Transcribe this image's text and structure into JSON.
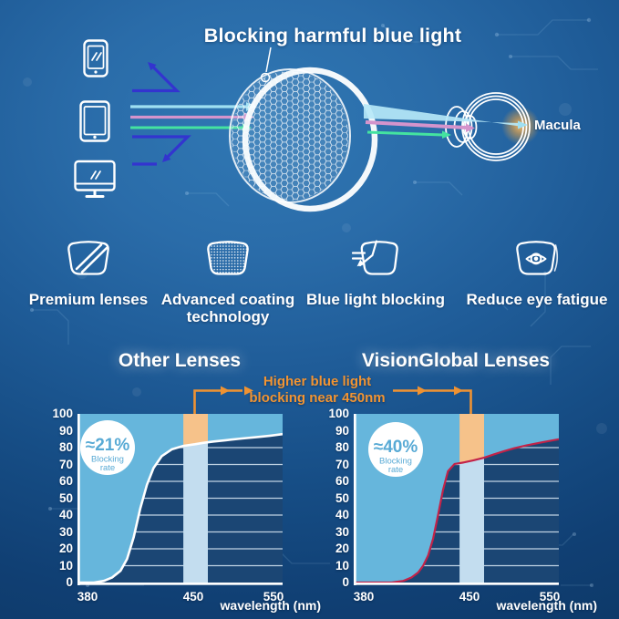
{
  "hero": {
    "title": "Blocking harmful blue light",
    "macula_label": "Macula",
    "device_icons": [
      "smartphone-icon",
      "tablet-icon",
      "monitor-icon"
    ]
  },
  "features": [
    {
      "icon": "lens-stripes-icon",
      "label": "Premium lenses"
    },
    {
      "icon": "lens-coating-icon",
      "label": "Advanced coating technology"
    },
    {
      "icon": "lens-blocking-icon",
      "label": "Blue light blocking"
    },
    {
      "icon": "lens-eye-icon",
      "label": "Reduce eye fatigue"
    }
  ],
  "comparison": {
    "annotation_line1": "Higher blue light",
    "annotation_line2": "blocking near 450nm"
  },
  "colors": {
    "background_blue": "#1f5c98",
    "plot_navy": "#1b4674",
    "light_blue_fill": "#66b6dc",
    "pale_band": "#c3ddef",
    "highlight_orange": "#f6c28a",
    "annotation_orange": "#f19433",
    "curve_white": "#ffffff",
    "curve_red": "#c22248",
    "ray_cyan": "#9fe0f2",
    "ray_pink": "#d494cc",
    "ray_green": "#44e3a0",
    "ray_indigo": "#3334cf",
    "bubble_text_blue": "#58aad5",
    "gridline": "#dcebf7"
  },
  "chart_data": [
    {
      "type": "area",
      "title": "Other Lenses",
      "xlabel": "wavelength (nm)",
      "x_ticks": [
        380,
        450,
        550
      ],
      "y_ticks": [
        100,
        90,
        80,
        70,
        60,
        50,
        40,
        30,
        20,
        10,
        0
      ],
      "xlim": [
        380,
        560
      ],
      "ylim": [
        0,
        100
      ],
      "grid_levels": [
        10,
        20,
        30,
        40,
        50,
        60,
        70,
        80
      ],
      "highlight_band_nm": [
        444,
        468
      ],
      "blocking_rate_label": "≈21%",
      "blocking_rate_sub1": "Blocking",
      "blocking_rate_sub2": "rate",
      "curve_color": "#ffffff",
      "x_nm": [
        380,
        390,
        396,
        401,
        406,
        410,
        414,
        418,
        422,
        426,
        431,
        437,
        444,
        452,
        462,
        475,
        490,
        510,
        530,
        545,
        560
      ],
      "y_blocking_pct": [
        0,
        0,
        1,
        3,
        7,
        14,
        27,
        44,
        58,
        68,
        75,
        79,
        81,
        82,
        82.8,
        83.6,
        84.4,
        85.4,
        86.3,
        87.1,
        88
      ]
    },
    {
      "type": "area",
      "title": "VisionGlobal Lenses",
      "xlabel": "wavelength (nm)",
      "x_ticks": [
        380,
        450,
        550
      ],
      "y_ticks": [
        100,
        90,
        80,
        70,
        60,
        50,
        40,
        30,
        20,
        10,
        0
      ],
      "xlim": [
        380,
        560
      ],
      "ylim": [
        0,
        100
      ],
      "grid_levels": [
        10,
        20,
        30,
        40,
        50,
        60,
        70,
        80
      ],
      "highlight_band_nm": [
        444,
        468
      ],
      "blocking_rate_label": "≈40%",
      "blocking_rate_sub1": "Blocking",
      "blocking_rate_sub2": "rate",
      "curve_color": "#c22248",
      "x_nm": [
        380,
        403,
        410,
        415,
        419,
        422,
        425,
        428,
        431,
        434,
        437,
        441,
        447,
        455,
        468,
        480,
        492,
        505,
        520,
        540,
        560
      ],
      "y_blocking_pct": [
        0,
        0,
        1,
        3,
        6,
        10,
        16,
        26,
        40,
        55,
        66,
        70.3,
        71.3,
        72.5,
        74,
        76,
        77.8,
        79.6,
        81.3,
        83.2,
        85
      ]
    }
  ]
}
